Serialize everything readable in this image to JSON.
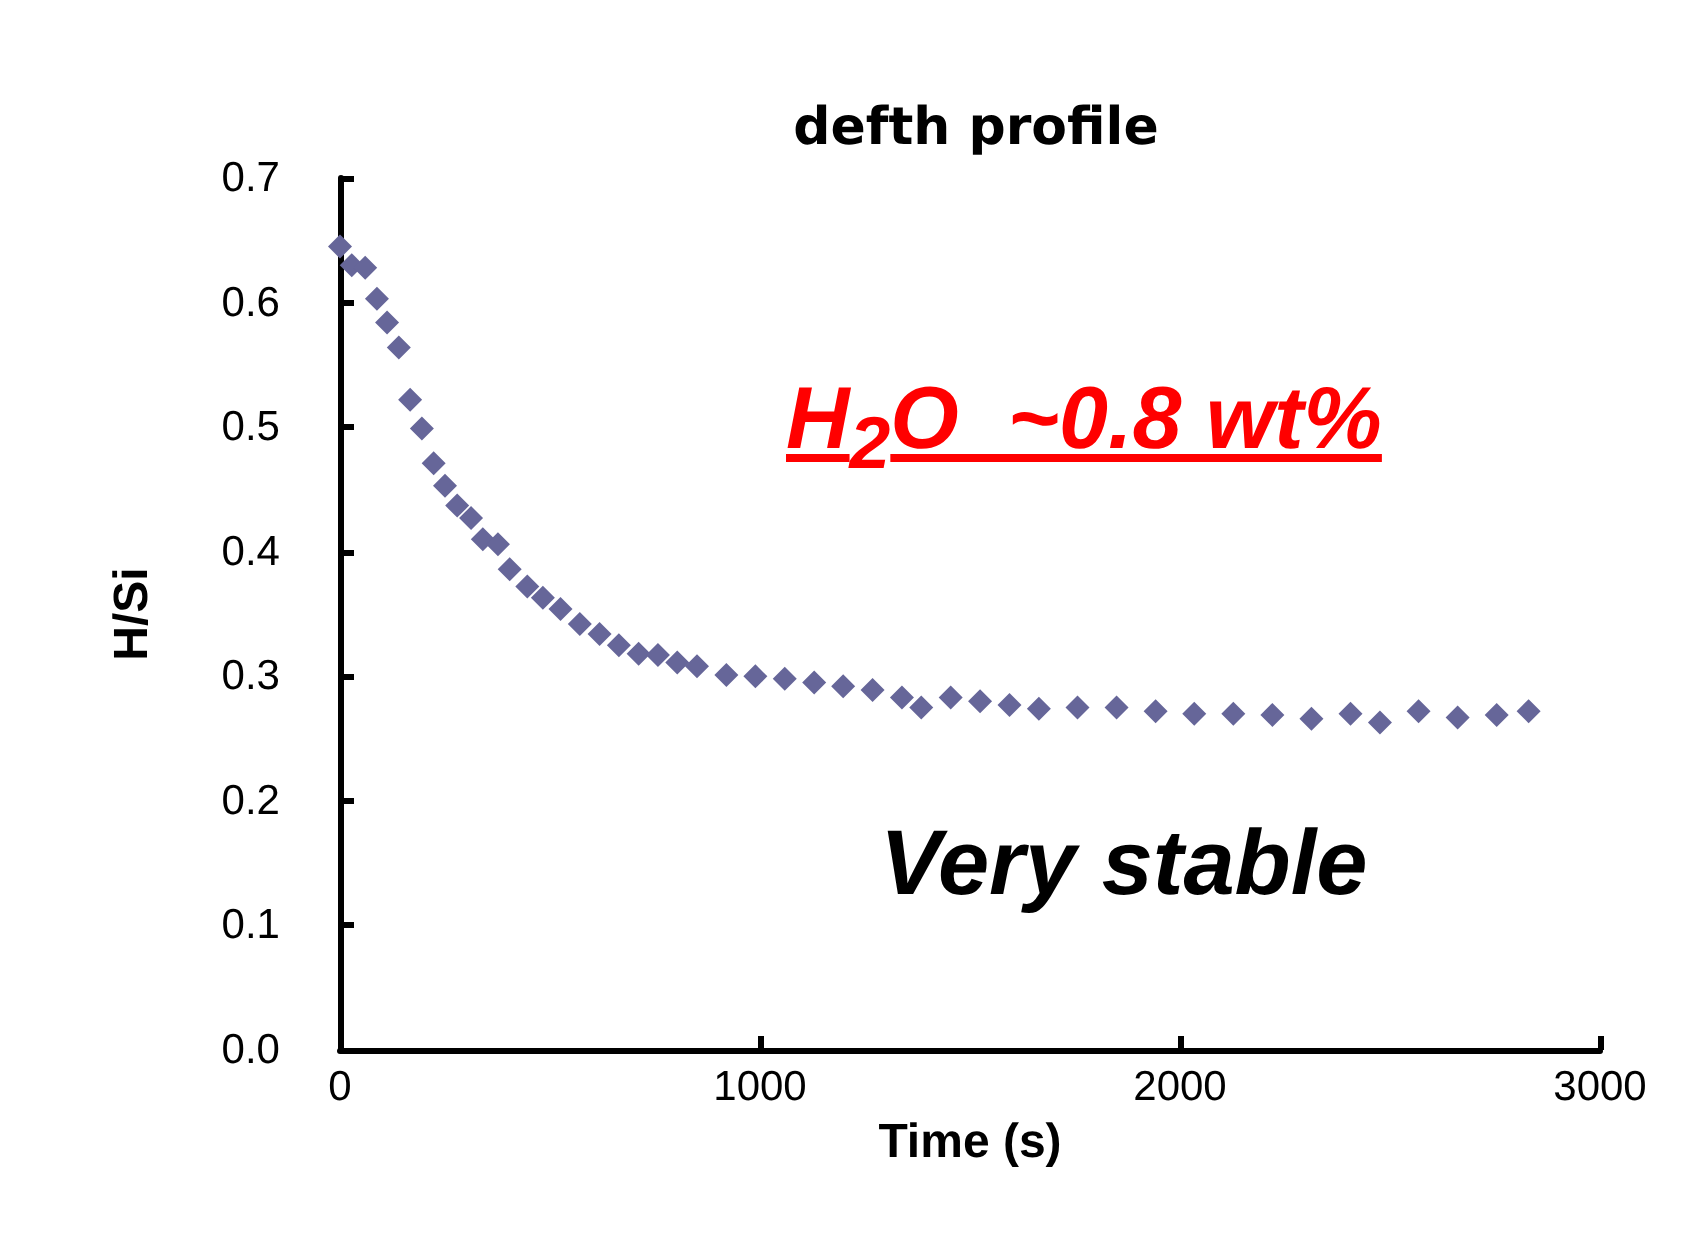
{
  "chart_data": {
    "type": "scatter",
    "title": "defth profile",
    "xlabel": "Time (s)",
    "ylabel": "H/Si",
    "x": [
      0,
      28,
      60,
      88,
      112,
      140,
      167,
      195,
      223,
      250,
      279,
      312,
      340,
      376,
      404,
      446,
      483,
      525,
      571,
      618,
      664,
      711,
      757,
      803,
      850,
      920,
      989,
      1059,
      1129,
      1198,
      1268,
      1338,
      1384,
      1454,
      1524,
      1594,
      1664,
      1756,
      1849,
      1942,
      2034,
      2127,
      2220,
      2313,
      2406,
      2476,
      2568,
      2661,
      2754,
      2830
    ],
    "series": [
      {
        "color": "#666699",
        "values": [
          0.645,
          0.63,
          0.628,
          0.603,
          0.584,
          0.564,
          0.522,
          0.499,
          0.471,
          0.453,
          0.437,
          0.427,
          0.41,
          0.406,
          0.386,
          0.372,
          0.363,
          0.354,
          0.342,
          0.334,
          0.325,
          0.318,
          0.317,
          0.311,
          0.308,
          0.301,
          0.3,
          0.298,
          0.295,
          0.292,
          0.289,
          0.283,
          0.275,
          0.283,
          0.28,
          0.277,
          0.274,
          0.275,
          0.275,
          0.272,
          0.27,
          0.27,
          0.269,
          0.266,
          0.27,
          0.263,
          0.272,
          0.267,
          0.269,
          0.272
        ]
      }
    ],
    "xlim": [
      0,
      3000
    ],
    "xticks": [
      0,
      1000,
      2000,
      3000
    ],
    "ylim": [
      0,
      0.7
    ],
    "yticks": [
      {
        "value": 0,
        "label": "0.0"
      },
      0.1,
      0.2,
      0.3,
      0.4,
      0.5,
      0.6,
      0.7
    ],
    "annotations": [
      "H$_{2}$O  ~0.8 wt%",
      "Very stable"
    ],
    "marker": "diamond"
  }
}
